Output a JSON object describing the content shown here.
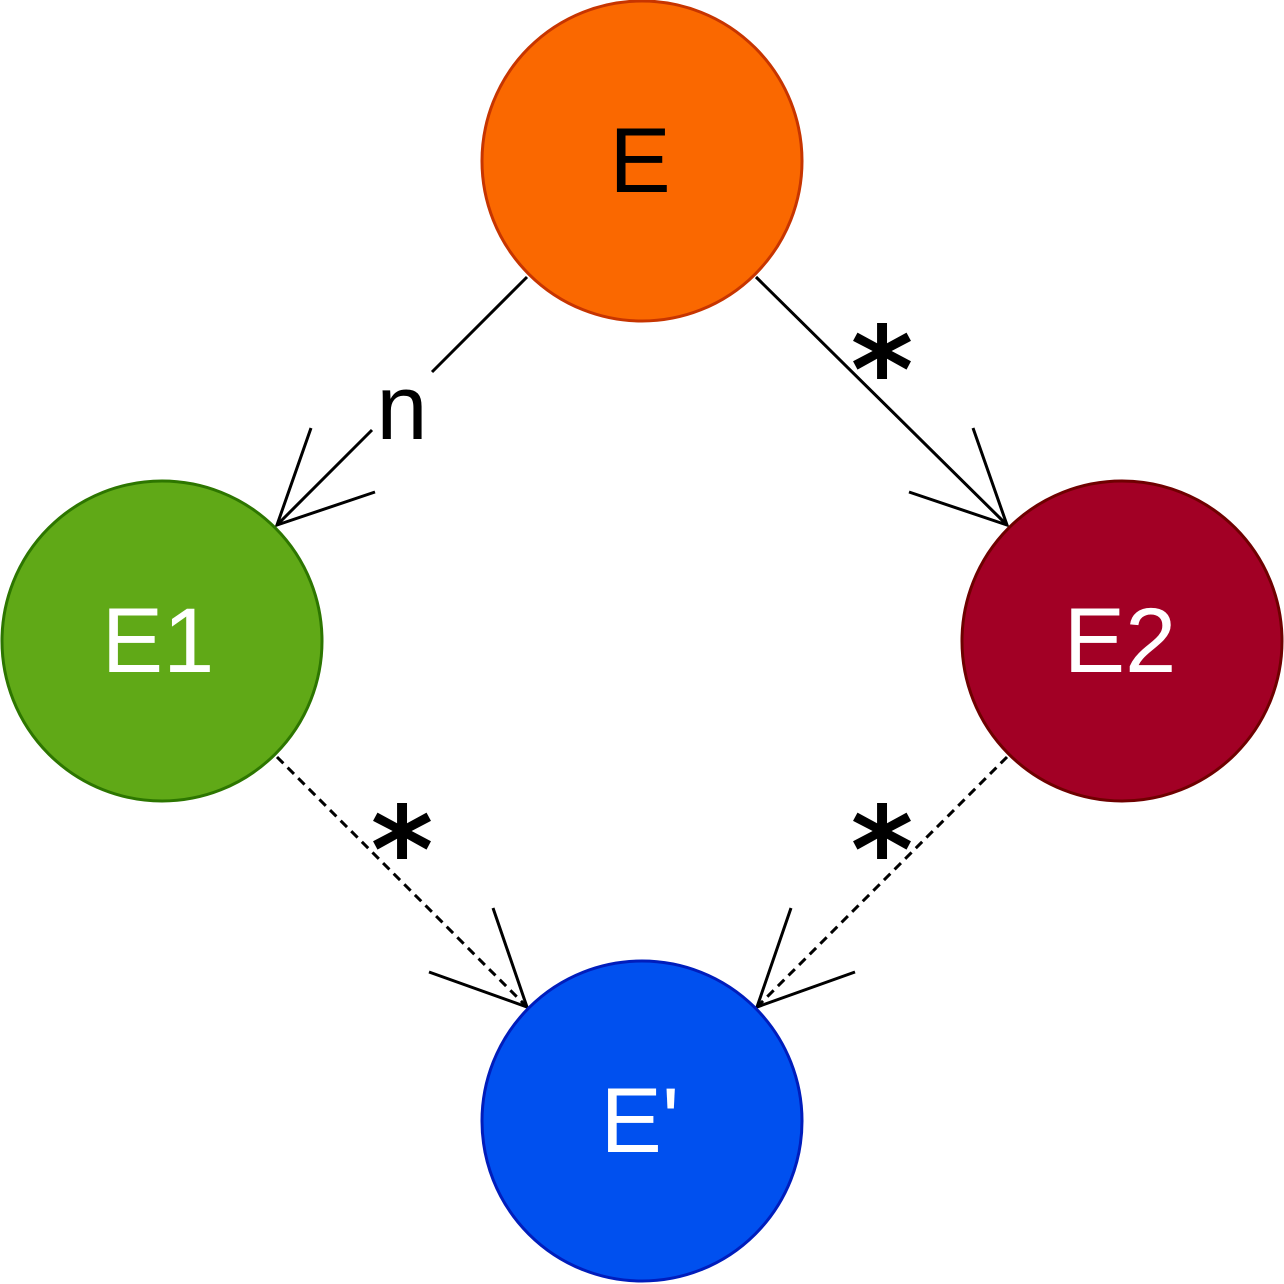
{
  "nodes": {
    "e": {
      "label": "E",
      "fill": "#fa6800",
      "stroke": "#c73500",
      "text_color": "#000000"
    },
    "e1": {
      "label": "E1",
      "fill": "#60a917",
      "stroke": "#2d7600",
      "text_color": "#ffffff"
    },
    "e2": {
      "label": "E2",
      "fill": "#a20025",
      "stroke": "#6f0000",
      "text_color": "#ffffff"
    },
    "ep": {
      "label": "E'",
      "fill": "#0050ef",
      "stroke": "#001dbc",
      "text_color": "#ffffff"
    }
  },
  "edges": {
    "e_to_e1": {
      "label": "n",
      "style": "solid"
    },
    "e_to_e2": {
      "label": "*",
      "style": "solid"
    },
    "e1_to_ep": {
      "label": "*",
      "style": "dashed"
    },
    "e2_to_ep": {
      "label": "*",
      "style": "dashed"
    }
  }
}
